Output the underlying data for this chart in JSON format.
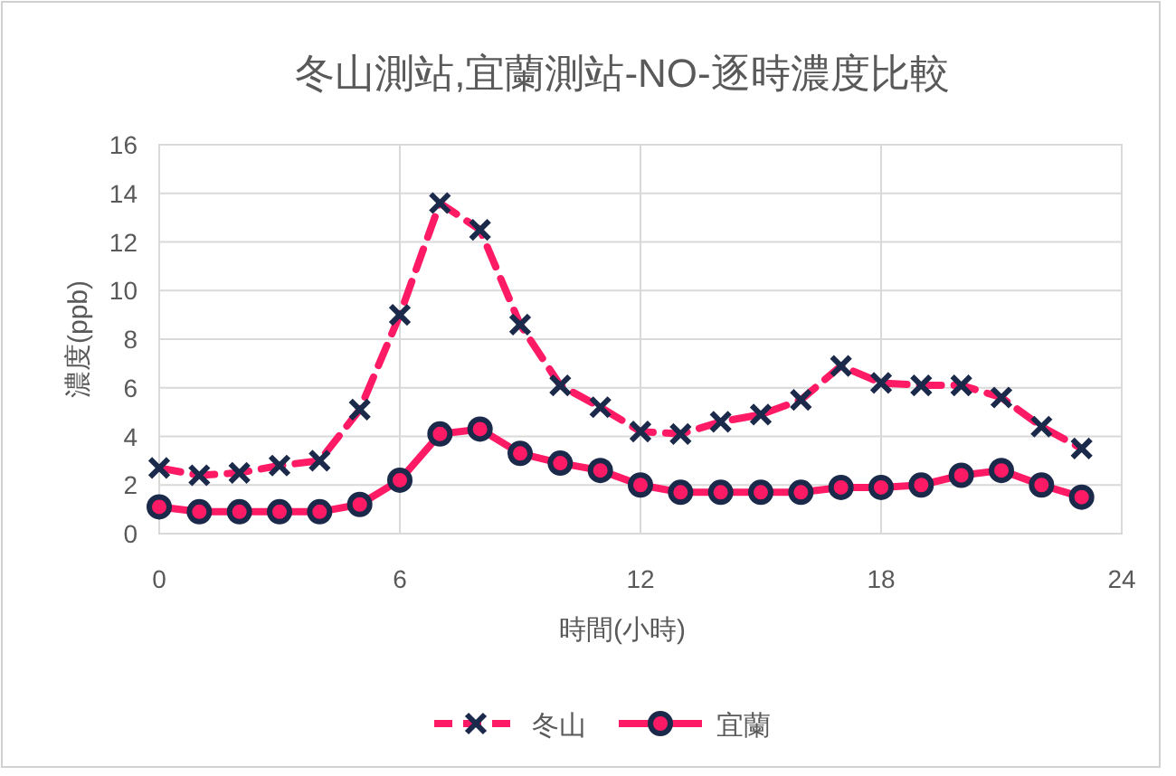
{
  "chart_data": {
    "type": "line",
    "title": "冬山測站,宜蘭測站-NO-逐時濃度比較",
    "xlabel": "時間(小時)",
    "ylabel": "濃度(ppb)",
    "x": [
      0,
      1,
      2,
      3,
      4,
      5,
      6,
      7,
      8,
      9,
      10,
      11,
      12,
      13,
      14,
      15,
      16,
      17,
      18,
      19,
      20,
      21,
      22,
      23
    ],
    "series": [
      {
        "name": "冬山",
        "color": "#ff1a66",
        "marker": "cross",
        "line_style": "dashed",
        "values": [
          2.7,
          2.4,
          2.5,
          2.8,
          3.0,
          5.1,
          9.0,
          13.6,
          12.5,
          8.6,
          6.1,
          5.2,
          4.2,
          4.1,
          4.6,
          4.9,
          5.5,
          6.9,
          6.2,
          6.1,
          6.1,
          5.6,
          4.4,
          3.5
        ]
      },
      {
        "name": "宜蘭",
        "color": "#ff1a66",
        "marker": "circle",
        "line_style": "solid",
        "values": [
          1.1,
          0.9,
          0.9,
          0.9,
          0.9,
          1.2,
          2.2,
          4.1,
          4.3,
          3.3,
          2.9,
          2.6,
          2.0,
          1.7,
          1.7,
          1.7,
          1.7,
          1.9,
          1.9,
          2.0,
          2.4,
          2.6,
          2.0,
          1.5
        ]
      }
    ],
    "xlim": [
      0,
      24
    ],
    "xticks": [
      0,
      6,
      12,
      18,
      24
    ],
    "ylim": [
      0,
      16
    ],
    "yticks": [
      0,
      2,
      4,
      6,
      8,
      10,
      12,
      14,
      16
    ],
    "grid": true,
    "legend": "bottom"
  }
}
